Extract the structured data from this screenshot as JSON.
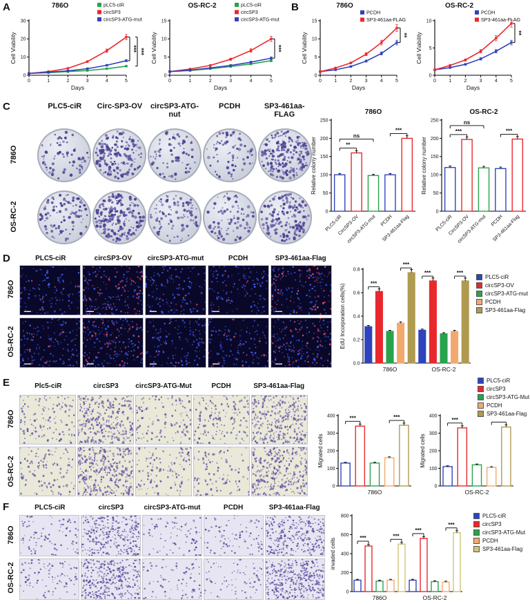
{
  "panelA": {
    "label": "A",
    "charts": [
      {
        "type": "line",
        "title": "786O",
        "xlabel": "Days",
        "ylabel": "Cell Viability",
        "xlim": [
          0,
          5
        ],
        "ylim": [
          0,
          30
        ],
        "xticks": [
          0,
          1,
          2,
          3,
          4,
          5
        ],
        "yticks": [
          0,
          10,
          20,
          30
        ],
        "x": [
          0,
          1,
          2,
          3,
          4,
          5
        ],
        "series": [
          {
            "name": "pLC5-ciR",
            "color": "#28a24c",
            "values": [
              1,
              1.4,
              2,
              2.6,
              3.6,
              5
            ]
          },
          {
            "name": "circSP3",
            "color": "#e8282d",
            "values": [
              1,
              2,
              3.8,
              7.5,
              13.5,
              21
            ]
          },
          {
            "name": "circSP3-ATG-mut",
            "color": "#2f43bd",
            "values": [
              1,
              1.7,
              2.4,
              3.6,
              5.5,
              8
            ]
          }
        ],
        "sig": [
          {
            "from": 1,
            "to": 2,
            "label": "***"
          },
          {
            "from": 1,
            "to": 0,
            "label": "***"
          }
        ]
      },
      {
        "type": "line",
        "title": "OS-RC-2",
        "xlabel": "Days",
        "ylabel": "Cell Viability",
        "xlim": [
          0,
          5
        ],
        "ylim": [
          0,
          15
        ],
        "xticks": [
          0,
          1,
          2,
          3,
          4,
          5
        ],
        "yticks": [
          0,
          5,
          10,
          15
        ],
        "x": [
          0,
          1,
          2,
          3,
          4,
          5
        ],
        "series": [
          {
            "name": "pLC5-ciR",
            "color": "#28a24c",
            "values": [
              1,
              1.3,
              1.8,
              2.4,
              3.1,
              4
            ]
          },
          {
            "name": "circSP3",
            "color": "#e8282d",
            "values": [
              1,
              1.7,
              2.7,
              4.4,
              6.8,
              10
            ]
          },
          {
            "name": "circSP3-ATG-mut",
            "color": "#2f43bd",
            "values": [
              1,
              1.4,
              2,
              2.7,
              3.6,
              4.7
            ]
          }
        ],
        "sig": [
          {
            "from": 1,
            "to": 2,
            "label": "***"
          }
        ]
      }
    ]
  },
  "panelB": {
    "label": "B",
    "charts": [
      {
        "type": "line",
        "title": "786O",
        "xlabel": "Days",
        "ylabel": "Cell Viability",
        "xlim": [
          0,
          5
        ],
        "ylim": [
          0,
          15
        ],
        "xticks": [
          0,
          1,
          2,
          3,
          4,
          5
        ],
        "yticks": [
          0,
          5,
          10,
          15
        ],
        "x": [
          0,
          1,
          2,
          3,
          4,
          5
        ],
        "series": [
          {
            "name": "PCDH",
            "color": "#2f43bd",
            "values": [
              1,
              1.5,
              2.4,
              3.9,
              6,
              9
            ]
          },
          {
            "name": "SP3-461aa-FLAG",
            "color": "#e8282d",
            "values": [
              1,
              2,
              3.4,
              5.8,
              9,
              13
            ]
          }
        ],
        "sig": [
          {
            "from": 1,
            "to": 0,
            "label": "**"
          }
        ]
      },
      {
        "type": "line",
        "title": "OS-RC-2",
        "xlabel": "Days",
        "ylabel": "Cell Viability",
        "xlim": [
          0,
          5
        ],
        "ylim": [
          0,
          10
        ],
        "xticks": [
          0,
          1,
          2,
          3,
          4,
          5
        ],
        "yticks": [
          0,
          5,
          10
        ],
        "x": [
          0,
          1,
          2,
          3,
          4,
          5
        ],
        "series": [
          {
            "name": "PCDH",
            "color": "#2f43bd",
            "values": [
              1,
              1.4,
              2,
              3,
              4.4,
              6
            ]
          },
          {
            "name": "SP3-461aa-FLAG",
            "color": "#e8282d",
            "values": [
              1,
              1.8,
              2.8,
              4.4,
              6.8,
              9.5
            ]
          }
        ],
        "sig": [
          {
            "from": 1,
            "to": 0,
            "label": "**"
          }
        ]
      }
    ]
  },
  "panelC": {
    "label": "C",
    "col_headers": [
      "PLC5-ciR",
      "Circ-SP3-OV",
      "circSP3-ATG-nut",
      "PCDH",
      "SP3-461aa-FLAG"
    ],
    "row_labels": [
      "786O",
      "OS-RC-2"
    ],
    "grid": {
      "type": "dish",
      "dot": "#4a3f93",
      "rmin": 1.1,
      "rmax": 3.0,
      "cells": [
        {
          "n": 80
        },
        {
          "n": 230
        },
        {
          "n": 95
        },
        {
          "n": 85
        },
        {
          "n": 260
        },
        {
          "n": 110
        },
        {
          "n": 260
        },
        {
          "n": 120
        },
        {
          "n": 100
        },
        {
          "n": 190
        }
      ]
    },
    "charts": [
      {
        "type": "bar",
        "title": "786O",
        "ylabel": "Relative colony number",
        "ylim": [
          0,
          250
        ],
        "yticks": [
          0,
          50,
          100,
          150,
          200,
          250
        ],
        "colors": [
          "#2f43bd",
          "#e8282d",
          "#28a24c",
          "#2f43bd",
          "#e8282d"
        ],
        "cat_labels": [
          "PLC5-ciR",
          "CircSP3-OV",
          "circSP3-ATG-mut",
          "PCDH",
          "SP3-461aa-Flag"
        ],
        "groups": [
          {
            "label": "",
            "values": [
              100,
              160,
              98,
              100,
              200
            ]
          }
        ],
        "sig": [
          {
            "group": 0,
            "from": 0,
            "to": 1,
            "label": "**",
            "lv": 0
          },
          {
            "group": 0,
            "from": 0,
            "to": 2,
            "label": "ns",
            "lv": 1
          },
          {
            "group": 0,
            "from": 3,
            "to": 4,
            "label": "***",
            "lv": 0
          }
        ]
      },
      {
        "type": "bar",
        "title": "OS-RC-2",
        "ylabel": "Relative colony number",
        "ylim": [
          0,
          250
        ],
        "yticks": [
          0,
          50,
          100,
          150,
          200,
          250
        ],
        "colors": [
          "#2f43bd",
          "#e8282d",
          "#28a24c",
          "#2f43bd",
          "#e8282d"
        ],
        "cat_labels": [
          "PLC5-ciR",
          "CircSP3-OV",
          "circSP3-ATG-mut",
          "PCDH",
          "SP3-461aa-Flag"
        ],
        "groups": [
          {
            "label": "",
            "values": [
              120,
              197,
              119,
              117,
              198
            ]
          }
        ],
        "sig": [
          {
            "group": 0,
            "from": 0,
            "to": 1,
            "label": "***",
            "lv": 0
          },
          {
            "group": 0,
            "from": 0,
            "to": 2,
            "label": "ns",
            "lv": 1
          },
          {
            "group": 0,
            "from": 3,
            "to": 4,
            "label": "***",
            "lv": 0
          }
        ]
      }
    ]
  },
  "panelD": {
    "label": "D",
    "col_headers": [
      "PLC5-ciR",
      "circSP3-OV",
      "circSP3-ATG-mut",
      "PCDH",
      "SP3-461aa-Flag"
    ],
    "row_labels": [
      "786O",
      "OS-RC-2"
    ],
    "grid": {
      "type": "rect",
      "bg": "#0a0828",
      "dot": "#3e57e8",
      "dot2": "#e84a5a",
      "rmin": 0.9,
      "rmax": 1.9,
      "scalebar": true,
      "cells": [
        {
          "n": 130,
          "f2": 0.07
        },
        {
          "n": 200,
          "f2": 0.33
        },
        {
          "n": 140,
          "f2": 0.05
        },
        {
          "n": 130,
          "f2": 0.09
        },
        {
          "n": 180,
          "f2": 0.33
        },
        {
          "n": 150,
          "f2": 0.05
        },
        {
          "n": 210,
          "f2": 0.3
        },
        {
          "n": 140,
          "f2": 0.05
        },
        {
          "n": 130,
          "f2": 0.07
        },
        {
          "n": 190,
          "f2": 0.28
        }
      ]
    },
    "legend": [
      {
        "label": "PLC5-ciR",
        "color": "#2f43bd"
      },
      {
        "label": "circSP3-OV",
        "color": "#e8282d"
      },
      {
        "label": "circSP3-ATG-mut",
        "color": "#28a24c"
      },
      {
        "label": "PCDH",
        "color": "#f2a96e"
      },
      {
        "label": "SP3-461aa-Flag",
        "color": "#b09a50"
      }
    ],
    "chart": {
      "type": "bar",
      "ylabel": "EdU Incorporation cells(%)",
      "ylim": [
        0,
        0.8
      ],
      "yticks": [
        0,
        0.2,
        0.4,
        0.6,
        0.8
      ],
      "ytick_labels": [
        "0.0",
        "0.2",
        "0.4",
        "0.6",
        "0.8"
      ],
      "colors": [
        "#2f43bd",
        "#e8282d",
        "#28a24c",
        "#f2a96e",
        "#b09a50"
      ],
      "fill": "solid",
      "groups": [
        {
          "label": "786O",
          "values": [
            0.31,
            0.61,
            0.27,
            0.34,
            0.77
          ]
        },
        {
          "label": "OS-RC-2",
          "values": [
            0.28,
            0.7,
            0.25,
            0.27,
            0.7
          ]
        }
      ],
      "sig": [
        {
          "group": 0,
          "from": 0,
          "to": 1,
          "label": "***"
        },
        {
          "group": 0,
          "from": 3,
          "to": 4,
          "label": "***"
        },
        {
          "group": 1,
          "from": 0,
          "to": 1,
          "label": "***"
        },
        {
          "group": 1,
          "from": 3,
          "to": 4,
          "label": "***"
        }
      ]
    }
  },
  "panelE": {
    "label": "E",
    "col_headers": [
      "Plc5-ciR",
      "circSP3",
      "circSP3-ATG-Mut",
      "PCDH",
      "SP3-461aa-Flag"
    ],
    "row_labels": [
      "786O",
      "OS-RC-2"
    ],
    "grid": {
      "type": "rect",
      "bg": "#eae8d8",
      "dot": "#665aa6",
      "rmin": 1.0,
      "rmax": 2.3,
      "cells": [
        {
          "n": 120
        },
        {
          "n": 300
        },
        {
          "n": 130
        },
        {
          "n": 150
        },
        {
          "n": 310
        },
        {
          "n": 110
        },
        {
          "n": 340
        },
        {
          "n": 120
        },
        {
          "n": 100
        },
        {
          "n": 320
        }
      ]
    },
    "legend": [
      {
        "label": "PLC5-ciR",
        "color": "#2f43bd"
      },
      {
        "label": "circSP3",
        "color": "#e8282d"
      },
      {
        "label": "circSP3-ATG-Mut",
        "color": "#28a24c"
      },
      {
        "label": "PCDH",
        "color": "#f2a96e"
      },
      {
        "label": "SP3-461aa-Flag",
        "color": "#b09a50"
      }
    ],
    "charts": [
      {
        "type": "bar",
        "ylabel": "Migrated cells",
        "ylim": [
          0,
          400
        ],
        "yticks": [
          0,
          100,
          200,
          300,
          400
        ],
        "colors": [
          "#2f43bd",
          "#e8282d",
          "#28a24c",
          "#f2a96e",
          "#b09a50"
        ],
        "groups": [
          {
            "label": "786O",
            "values": [
              130,
              340,
              130,
              160,
              345
            ]
          }
        ],
        "sig": [
          {
            "group": 0,
            "from": 0,
            "to": 1,
            "label": "***"
          },
          {
            "group": 0,
            "from": 3,
            "to": 4,
            "label": "***"
          }
        ]
      },
      {
        "type": "bar",
        "ylabel": "Migrated cells",
        "ylim": [
          0,
          400
        ],
        "yticks": [
          0,
          100,
          200,
          300,
          400
        ],
        "colors": [
          "#2f43bd",
          "#e8282d",
          "#28a24c",
          "#f2a96e",
          "#b09a50"
        ],
        "groups": [
          {
            "label": "OS-RC-2",
            "values": [
              110,
              330,
              120,
              105,
              335
            ]
          }
        ],
        "sig": [
          {
            "group": 0,
            "from": 0,
            "to": 1,
            "label": "***"
          },
          {
            "group": 0,
            "from": 3,
            "to": 4,
            "label": "***"
          }
        ]
      }
    ]
  },
  "panelF": {
    "label": "F",
    "col_headers": [
      "PLC5-ciR",
      "circSP3",
      "circSP3-ATG-mut",
      "PCDH",
      "SP3-461aa-Flag"
    ],
    "row_labels": [
      "786O",
      "OS-RC-2"
    ],
    "grid": {
      "type": "rect",
      "bg": "#e7e5f1",
      "dot": "#5a4f9e",
      "rmin": 1.0,
      "rmax": 2.2,
      "cells": [
        {
          "n": 90
        },
        {
          "n": 290
        },
        {
          "n": 80
        },
        {
          "n": 90
        },
        {
          "n": 300
        },
        {
          "n": 90
        },
        {
          "n": 340
        },
        {
          "n": 80
        },
        {
          "n": 75
        },
        {
          "n": 360
        }
      ]
    },
    "legend": [
      {
        "label": "PLC5-ciR",
        "color": "#2f43bd"
      },
      {
        "label": "circSP3",
        "color": "#e8282d"
      },
      {
        "label": "circSP3-ATG-Mut",
        "color": "#28a24c"
      },
      {
        "label": "PCDH",
        "color": "#f2a96e"
      },
      {
        "label": "SP3-461aa-Flag",
        "color": "#cfc475"
      }
    ],
    "chart": {
      "type": "bar",
      "ylabel": "invaded cells",
      "ylim": [
        0,
        800
      ],
      "yticks": [
        0,
        200,
        400,
        600,
        800
      ],
      "colors": [
        "#2f43bd",
        "#e8282d",
        "#28a24c",
        "#f2a96e",
        "#cfc475"
      ],
      "groups": [
        {
          "label": "786O",
          "values": [
            120,
            480,
            110,
            120,
            500
          ]
        },
        {
          "label": "OS-RC-2",
          "values": [
            120,
            560,
            105,
            100,
            620
          ]
        }
      ],
      "sig": [
        {
          "group": 0,
          "from": 0,
          "to": 1,
          "label": "***"
        },
        {
          "group": 0,
          "from": 3,
          "to": 4,
          "label": "***"
        },
        {
          "group": 1,
          "from": 0,
          "to": 1,
          "label": "***"
        },
        {
          "group": 1,
          "from": 3,
          "to": 4,
          "label": "***"
        }
      ]
    }
  }
}
